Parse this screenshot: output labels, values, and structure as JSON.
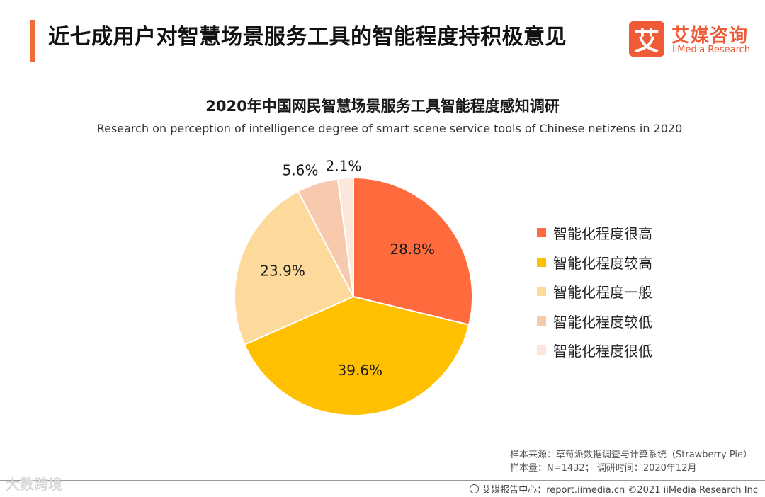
{
  "header": {
    "title": "近七成用户对智慧场景服务工具的智能程度持积极意见"
  },
  "logo": {
    "mark": "艾",
    "cn": "艾媒咨询",
    "en": "iiMedia Research"
  },
  "chart_data": {
    "type": "pie",
    "title": "2020年中国网民智慧场景服务工具智能程度感知调研",
    "subtitle": "Research on perception of intelligence degree of smart scene service tools of Chinese netizens in 2020",
    "categories": [
      "智能化程度很高",
      "智能化程度较高",
      "智能化程度一般",
      "智能化程度较低",
      "智能化程度很低"
    ],
    "values": [
      28.8,
      39.6,
      23.9,
      5.6,
      2.1
    ],
    "labels": [
      "28.8%",
      "39.6%",
      "23.9%",
      "5.6%",
      "2.1%"
    ],
    "colors": [
      "#ff6b3d",
      "#ffc000",
      "#fdd99b",
      "#f7c9ad",
      "#fbe7dc"
    ],
    "legend_position": "right"
  },
  "source": {
    "line1": "样本来源：草莓派数据调查与计算系统（Strawberry Pie）",
    "line2": "样本量：N=1432； 调研时间：2020年12月"
  },
  "footer": {
    "text": "艾媒报告中心：report.iimedia.cn  ©2021  iiMedia Research  Inc"
  },
  "watermark": "大数跨境"
}
